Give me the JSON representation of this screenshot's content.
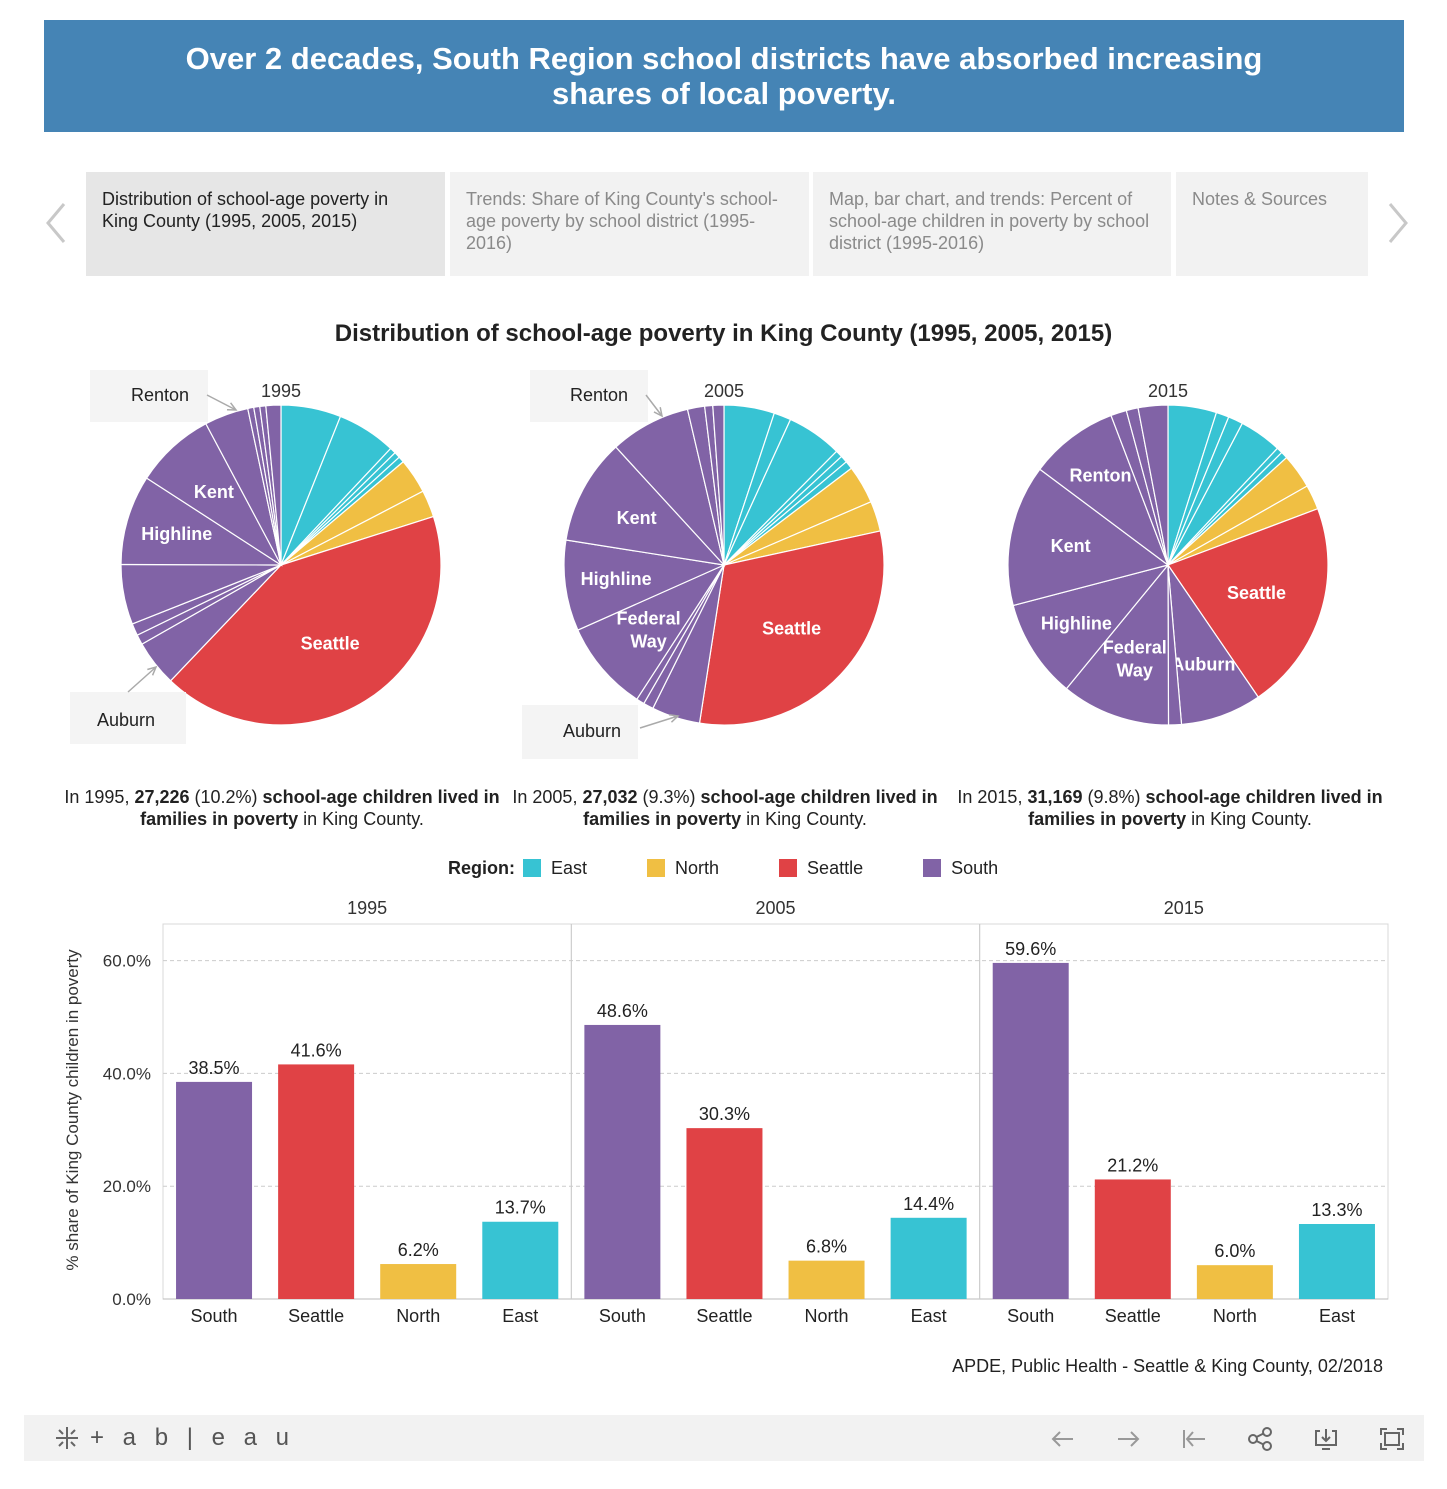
{
  "header": {
    "title": "Over 2 decades, South Region school districts have absorbed increasing shares of local poverty."
  },
  "tabs": [
    {
      "label": "Distribution of school-age poverty in King County (1995, 2005, 2015)"
    },
    {
      "label": "Trends: Share of King County's school-age poverty by school district (1995-2016)"
    },
    {
      "label": "Map, bar chart, and trends: Percent of school-age children in poverty by school district (1995-2016)"
    },
    {
      "label": "Notes & Sources"
    }
  ],
  "page_title": "Distribution of school-age poverty in King County (1995, 2005, 2015)",
  "colors": {
    "East": "#37c3d3",
    "North": "#f0bf43",
    "Seattle": "#e04245",
    "South": "#8163a6",
    "banner": "#4584b5"
  },
  "captions": [
    {
      "pre": "In 1995, ",
      "count": "27,226",
      "pct": " (10.2%) ",
      "bold": "school-age children lived in families in poverty",
      "post": " in King County."
    },
    {
      "pre": "In 2005, ",
      "count": "27,032",
      "pct": " (9.3%) ",
      "bold": "school-age children lived in families in poverty",
      "post": " in King County."
    },
    {
      "pre": "In 2015, ",
      "count": "31,169",
      "pct": " (9.8%) ",
      "bold": "school-age children lived in families in poverty",
      "post": " in King County."
    }
  ],
  "legend": {
    "label": "Region:",
    "items": [
      "East",
      "North",
      "Seattle",
      "South"
    ]
  },
  "source": "APDE, Public Health - Seattle & King County, 02/2018",
  "footer": {
    "brand": "+ a b | e a u"
  },
  "chart_data": [
    {
      "type": "pie",
      "title": "1995",
      "slices": [
        {
          "region": "East",
          "value": 6.0
        },
        {
          "region": "East",
          "value": 5.9
        },
        {
          "region": "East",
          "value": 0.6
        },
        {
          "region": "East",
          "value": 0.6
        },
        {
          "region": "East",
          "value": 0.6
        },
        {
          "region": "North",
          "value": 3.5
        },
        {
          "region": "North",
          "value": 2.7
        },
        {
          "region": "Seattle",
          "value": 41.6,
          "label": "Seattle"
        },
        {
          "region": "South",
          "value": 4.6,
          "label": "Auburn"
        },
        {
          "region": "South",
          "value": 1.0
        },
        {
          "region": "South",
          "value": 1.2
        },
        {
          "region": "South",
          "value": 6.0
        },
        {
          "region": "South",
          "value": 9.0,
          "label": "Highline"
        },
        {
          "region": "South",
          "value": 8.0,
          "label": "Kent"
        },
        {
          "region": "South",
          "value": 4.4,
          "label": "Renton"
        },
        {
          "region": "South",
          "value": 0.6
        },
        {
          "region": "South",
          "value": 0.6
        },
        {
          "region": "South",
          "value": 0.6
        },
        {
          "region": "South",
          "value": 1.5
        }
      ]
    },
    {
      "type": "pie",
      "title": "2005",
      "slices": [
        {
          "region": "East",
          "value": 5.0
        },
        {
          "region": "East",
          "value": 1.7
        },
        {
          "region": "East",
          "value": 5.5
        },
        {
          "region": "East",
          "value": 0.7
        },
        {
          "region": "East",
          "value": 0.7
        },
        {
          "region": "East",
          "value": 0.8
        },
        {
          "region": "North",
          "value": 3.8
        },
        {
          "region": "North",
          "value": 3.0
        },
        {
          "region": "Seattle",
          "value": 30.3,
          "label": "Seattle"
        },
        {
          "region": "South",
          "value": 4.8,
          "label": "Auburn"
        },
        {
          "region": "South",
          "value": 1.0
        },
        {
          "region": "South",
          "value": 0.8
        },
        {
          "region": "South",
          "value": 9.0,
          "label": "Federal Way"
        },
        {
          "region": "South",
          "value": 9.0,
          "label": "Highline"
        },
        {
          "region": "South",
          "value": 10.5,
          "label": "Kent"
        },
        {
          "region": "South",
          "value": 8.0,
          "label": "Renton"
        },
        {
          "region": "South",
          "value": 1.7
        },
        {
          "region": "South",
          "value": 0.8
        },
        {
          "region": "South",
          "value": 1.1
        }
      ]
    },
    {
      "type": "pie",
      "title": "2015",
      "slices": [
        {
          "region": "East",
          "value": 4.9
        },
        {
          "region": "East",
          "value": 1.3
        },
        {
          "region": "East",
          "value": 1.5
        },
        {
          "region": "East",
          "value": 4.3
        },
        {
          "region": "East",
          "value": 0.6
        },
        {
          "region": "East",
          "value": 0.7
        },
        {
          "region": "North",
          "value": 3.5
        },
        {
          "region": "North",
          "value": 2.5
        },
        {
          "region": "Seattle",
          "value": 21.2,
          "label": "Seattle"
        },
        {
          "region": "South",
          "value": 8.2,
          "label": "Auburn"
        },
        {
          "region": "South",
          "value": 1.3
        },
        {
          "region": "South",
          "value": 11.0,
          "label": "Federal Way"
        },
        {
          "region": "South",
          "value": 10.0,
          "label": "Highline"
        },
        {
          "region": "South",
          "value": 14.3,
          "label": "Kent"
        },
        {
          "region": "South",
          "value": 9.0,
          "label": "Renton"
        },
        {
          "region": "South",
          "value": 1.6
        },
        {
          "region": "South",
          "value": 1.2
        },
        {
          "region": "South",
          "value": 3.0
        }
      ]
    },
    {
      "type": "bar",
      "panels": [
        "1995",
        "2005",
        "2015"
      ],
      "categories": [
        "South",
        "Seattle",
        "North",
        "East"
      ],
      "series": [
        {
          "name": "1995",
          "values": [
            38.5,
            41.6,
            6.2,
            13.7
          ],
          "labels": [
            "38.5%",
            "41.6%",
            "6.2%",
            "13.7%"
          ]
        },
        {
          "name": "2005",
          "values": [
            48.6,
            30.3,
            6.8,
            14.4
          ],
          "labels": [
            "48.6%",
            "30.3%",
            "6.8%",
            "14.4%"
          ]
        },
        {
          "name": "2015",
          "values": [
            59.6,
            21.2,
            6.0,
            13.3
          ],
          "labels": [
            "59.6%",
            "21.2%",
            "6.0%",
            "13.3%"
          ]
        }
      ],
      "ylabel": "% share of King County children in poverty",
      "yticks": [
        "0.0%",
        "20.0%",
        "40.0%",
        "60.0%"
      ],
      "ytick_values": [
        0,
        20,
        40,
        60
      ],
      "ylim": [
        0,
        66.5
      ]
    }
  ]
}
